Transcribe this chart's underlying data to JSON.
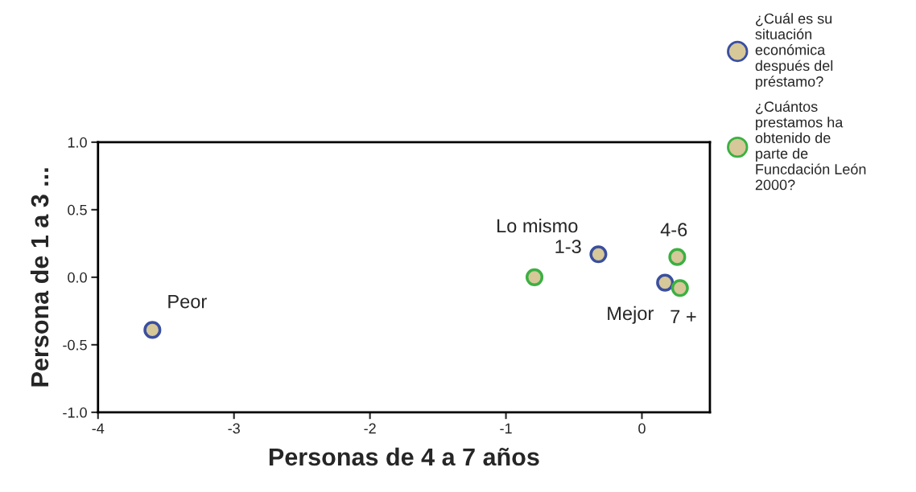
{
  "chart_data": {
    "type": "scatter",
    "xlabel": "Personas de 4 a 7 años",
    "ylabel": "Persona de 1 a 3 ...",
    "xlim": [
      -4,
      0.5
    ],
    "ylim": [
      -1.0,
      1.0
    ],
    "xticks": [
      -4,
      -3,
      -2,
      -1,
      0
    ],
    "yticks": [
      {
        "value": -1.0,
        "label": "-1.0"
      },
      {
        "value": -0.5,
        "label": "-0.5"
      },
      {
        "value": 0.0,
        "label": "0.0"
      },
      {
        "value": 0.5,
        "label": "0.5"
      },
      {
        "value": 1.0,
        "label": "1.0"
      }
    ],
    "marker": "circle",
    "grid": false,
    "legend": "top right",
    "series": [
      {
        "name": "¿Cuál es su situación económica después del préstamo?",
        "color": "#3a4fa0",
        "x": [
          -3.6,
          -0.32,
          0.17
        ],
        "values": [
          -0.39,
          0.17,
          -0.04
        ]
      },
      {
        "name": "¿Cuántos prestamos ha obtenido de parte de Funcdación León 2000?",
        "color": "#3cb043",
        "x": [
          -0.79,
          0.26,
          0.28
        ],
        "values": [
          0.0,
          0.15,
          -0.08
        ]
      }
    ],
    "annotations": [
      {
        "text": "Peor",
        "x": -3.6,
        "y": -0.39
      },
      {
        "text": "Lo mismo",
        "x": -0.32,
        "y": 0.17
      },
      {
        "text": "Mejor",
        "x": 0.17,
        "y": -0.04
      },
      {
        "text": "1-3",
        "x": -0.79,
        "y": 0.0
      },
      {
        "text": "4-6",
        "x": 0.26,
        "y": 0.15
      },
      {
        "text": "7 +",
        "x": 0.28,
        "y": -0.08
      }
    ]
  }
}
